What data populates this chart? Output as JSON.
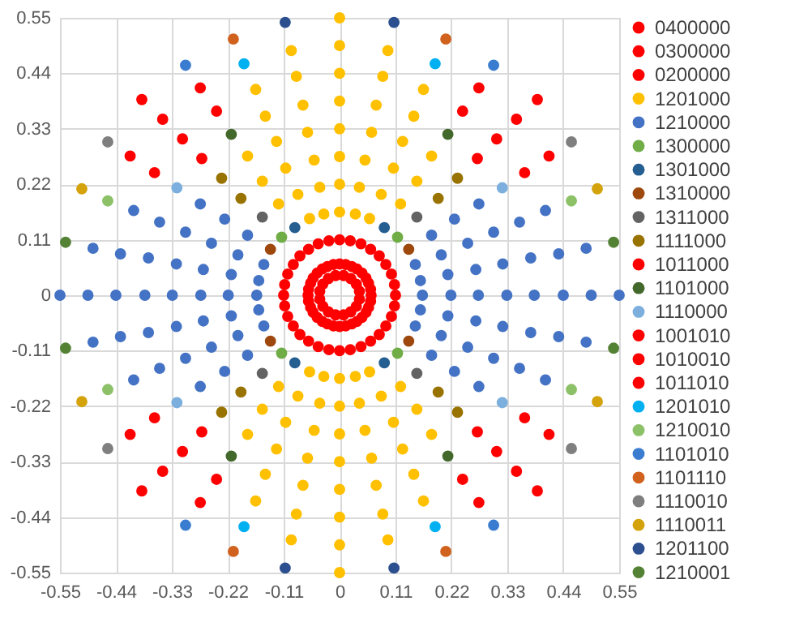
{
  "chart_data": {
    "type": "scatter",
    "xlim": [
      -0.55,
      0.55
    ],
    "ylim": [
      -0.55,
      0.55
    ],
    "xticks": [
      -0.55,
      -0.44,
      -0.33,
      -0.22,
      -0.11,
      0,
      0.11,
      0.22,
      0.33,
      0.44,
      0.55
    ],
    "yticks": [
      -0.55,
      -0.44,
      -0.33,
      -0.22,
      -0.11,
      0,
      0.11,
      0.22,
      0.33,
      0.44,
      0.55
    ],
    "grid": true,
    "legend": "right",
    "marker": "circle",
    "series": [
      {
        "name": "0400000",
        "color": "#ff0000",
        "x": [
          0.11,
          0.108,
          0.102,
          0.091,
          0.078,
          0.061,
          0.042,
          0.021,
          0,
          -0.021,
          -0.042,
          -0.061,
          -0.078,
          -0.091,
          -0.102,
          -0.108,
          -0.11,
          -0.108,
          -0.102,
          -0.091,
          -0.078,
          -0.061,
          -0.042,
          -0.021,
          0,
          0.021,
          0.042,
          0.061,
          0.078,
          0.091,
          0.102,
          0.108
        ],
        "values": [
          0,
          0.021,
          0.042,
          0.061,
          0.078,
          0.091,
          0.102,
          0.108,
          0.11,
          0.108,
          0.102,
          0.091,
          0.078,
          0.061,
          0.042,
          0.021,
          0,
          -0.021,
          -0.042,
          -0.061,
          -0.078,
          -0.091,
          -0.102,
          -0.108,
          -0.11,
          -0.108,
          -0.102,
          -0.091,
          -0.078,
          -0.061,
          -0.042,
          -0.021
        ]
      },
      {
        "name": "0300000",
        "color": "#ff0000",
        "x": [
          0.062,
          0.061,
          0.057,
          0.052,
          0.044,
          0.034,
          0.024,
          0.012,
          0,
          -0.012,
          -0.024,
          -0.034,
          -0.044,
          -0.052,
          -0.057,
          -0.061,
          -0.062,
          -0.061,
          -0.057,
          -0.052,
          -0.044,
          -0.034,
          -0.024,
          -0.012,
          0,
          0.012,
          0.024,
          0.034,
          0.044,
          0.052,
          0.057,
          0.061
        ],
        "values": [
          0,
          0.012,
          0.024,
          0.034,
          0.044,
          0.052,
          0.057,
          0.061,
          0.062,
          0.061,
          0.057,
          0.052,
          0.044,
          0.034,
          0.024,
          0.012,
          0,
          -0.012,
          -0.024,
          -0.034,
          -0.044,
          -0.052,
          -0.057,
          -0.061,
          -0.062,
          -0.061,
          -0.057,
          -0.052,
          -0.044,
          -0.034,
          -0.024,
          -0.012
        ]
      },
      {
        "name": "0200000",
        "color": "#ff0000",
        "x": [
          0.039,
          0.033,
          0.022,
          0.008,
          -0.008,
          -0.022,
          -0.033,
          -0.039,
          -0.039,
          -0.033,
          -0.022,
          -0.008,
          0.008,
          0.022,
          0.033,
          0.039
        ],
        "values": [
          0.008,
          0.022,
          0.033,
          0.039,
          0.039,
          0.033,
          0.022,
          0.008,
          -0.008,
          -0.022,
          -0.033,
          -0.039,
          -0.039,
          -0.033,
          -0.022,
          -0.008
        ]
      },
      {
        "name": "1201000",
        "color": "#ffc000",
        "x": [
          -0.095,
          -0.085,
          -0.072,
          -0.063,
          -0.05,
          -0.039,
          -0.031,
          -0.165,
          -0.146,
          -0.124,
          -0.106,
          -0.082,
          -0.059,
          -0.181,
          -0.152,
          -0.12,
          0.095,
          0.085,
          0.072,
          0.063,
          0.05,
          0.039,
          0.031,
          0.165,
          0.146,
          0.124,
          0.106,
          0.082,
          0.059,
          0.181,
          0.152,
          0.12,
          -0.095,
          -0.085,
          -0.072,
          -0.063,
          -0.05,
          -0.039,
          -0.031,
          -0.165,
          -0.146,
          -0.124,
          -0.106,
          -0.082,
          -0.059,
          -0.181,
          -0.152,
          -0.12,
          0.095,
          0.085,
          0.072,
          0.063,
          0.05,
          0.039,
          0.031,
          0.165,
          0.146,
          0.124,
          0.106,
          0.082,
          0.059,
          0.181,
          0.152,
          0.12,
          0,
          0,
          0,
          0,
          0,
          0,
          0,
          0,
          0,
          0,
          0,
          0,
          0,
          0,
          0,
          0
        ],
        "values": [
          0.485,
          0.434,
          0.377,
          0.323,
          0.268,
          0.214,
          0.161,
          0.408,
          0.355,
          0.305,
          0.252,
          0.2,
          0.152,
          0.276,
          0.226,
          0.181,
          0.485,
          0.434,
          0.377,
          0.323,
          0.268,
          0.214,
          0.161,
          0.408,
          0.355,
          0.305,
          0.252,
          0.2,
          0.152,
          0.276,
          0.226,
          0.181,
          -0.485,
          -0.434,
          -0.377,
          -0.323,
          -0.268,
          -0.214,
          -0.161,
          -0.408,
          -0.355,
          -0.305,
          -0.252,
          -0.2,
          -0.152,
          -0.276,
          -0.226,
          -0.181,
          -0.485,
          -0.434,
          -0.377,
          -0.323,
          -0.268,
          -0.214,
          -0.161,
          -0.408,
          -0.355,
          -0.305,
          -0.252,
          -0.2,
          -0.152,
          -0.276,
          -0.226,
          -0.181,
          0.55,
          0.495,
          0.44,
          0.385,
          0.33,
          0.275,
          0.22,
          0.165,
          -0.165,
          -0.22,
          -0.275,
          -0.33,
          -0.385,
          -0.44,
          -0.495,
          -0.55
        ]
      },
      {
        "name": "1210000",
        "color": "#4472c4",
        "x": [
          -0.485,
          -0.431,
          -0.376,
          -0.321,
          -0.268,
          -0.213,
          -0.159,
          -0.405,
          -0.354,
          -0.303,
          -0.252,
          -0.2,
          -0.149,
          -0.274,
          -0.226,
          -0.181,
          0.485,
          0.431,
          0.376,
          0.321,
          0.268,
          0.213,
          0.159,
          0.405,
          0.354,
          0.303,
          0.252,
          0.2,
          0.149,
          0.274,
          0.226,
          0.181,
          -0.485,
          -0.431,
          -0.376,
          -0.321,
          -0.268,
          -0.213,
          -0.159,
          -0.405,
          -0.354,
          -0.303,
          -0.252,
          -0.2,
          -0.149,
          -0.274,
          -0.226,
          -0.181,
          0.485,
          0.431,
          0.376,
          0.321,
          0.268,
          0.213,
          0.159,
          0.405,
          0.354,
          0.303,
          0.252,
          0.2,
          0.149,
          0.274,
          0.226,
          0.181,
          -0.55,
          -0.495,
          -0.44,
          -0.383,
          -0.329,
          -0.273,
          -0.219,
          -0.163,
          0.163,
          0.219,
          0.273,
          0.329,
          0.383,
          0.44,
          0.495,
          0.55
        ],
        "values": [
          0.093,
          0.082,
          0.074,
          0.062,
          0.051,
          0.041,
          0.029,
          0.168,
          0.145,
          0.125,
          0.103,
          0.08,
          0.061,
          0.181,
          0.151,
          0.119,
          0.093,
          0.082,
          0.074,
          0.062,
          0.051,
          0.041,
          0.029,
          0.168,
          0.145,
          0.125,
          0.103,
          0.08,
          0.061,
          0.181,
          0.151,
          0.119,
          -0.093,
          -0.082,
          -0.074,
          -0.062,
          -0.051,
          -0.041,
          -0.029,
          -0.168,
          -0.145,
          -0.125,
          -0.103,
          -0.08,
          -0.061,
          -0.181,
          -0.151,
          -0.119,
          -0.093,
          -0.082,
          -0.074,
          -0.062,
          -0.051,
          -0.041,
          -0.029,
          -0.168,
          -0.145,
          -0.125,
          -0.103,
          -0.08,
          -0.061,
          -0.181,
          -0.151,
          -0.119,
          0,
          0,
          0,
          0,
          0,
          0,
          0,
          0,
          0,
          0,
          0,
          0,
          0,
          0,
          0,
          0
        ]
      },
      {
        "name": "1300000",
        "color": "#70ad47",
        "x": [
          -0.114,
          0.114,
          -0.114,
          0.114
        ],
        "values": [
          0.115,
          0.115,
          -0.115,
          -0.115
        ]
      },
      {
        "name": "1301000",
        "color": "#255e91",
        "x": [
          -0.088,
          0.088,
          -0.088,
          0.088
        ],
        "values": [
          0.134,
          0.134,
          -0.134,
          -0.134
        ]
      },
      {
        "name": "1310000",
        "color": "#9e480e",
        "x": [
          -0.136,
          0.136,
          -0.136,
          0.136
        ],
        "values": [
          0.091,
          0.091,
          -0.091,
          -0.091
        ]
      },
      {
        "name": "1311000",
        "color": "#636363",
        "x": [
          -0.152,
          0.152,
          -0.152,
          0.152
        ],
        "values": [
          0.155,
          0.155,
          -0.155,
          -0.155
        ]
      },
      {
        "name": "1111000",
        "color": "#997300",
        "x": [
          -0.232,
          -0.194,
          0.232,
          0.194,
          -0.232,
          -0.194,
          0.232,
          0.194
        ],
        "values": [
          0.232,
          0.192,
          0.232,
          0.192,
          -0.232,
          -0.192,
          -0.232,
          -0.192
        ]
      },
      {
        "name": "1011000",
        "color": "#ff0000",
        "x": [
          -0.389,
          -0.348,
          0.389,
          0.348,
          -0.389,
          -0.348,
          0.389,
          0.348
        ],
        "values": [
          0.388,
          0.349,
          0.388,
          0.349,
          -0.388,
          -0.349,
          -0.388,
          -0.349
        ]
      },
      {
        "name": "1101000",
        "color": "#43682b",
        "x": [
          -0.213,
          0.213,
          -0.213,
          0.213
        ],
        "values": [
          0.319,
          0.319,
          -0.319,
          -0.319
        ]
      },
      {
        "name": "1110000",
        "color": "#7cafdd",
        "x": [
          -0.32,
          0.32,
          -0.32,
          0.32
        ],
        "values": [
          0.213,
          0.213,
          -0.213,
          -0.213
        ]
      },
      {
        "name": "1001010",
        "color": "#ff0000",
        "x": [
          -0.412,
          -0.364,
          0.412,
          0.364,
          -0.412,
          -0.364,
          0.412,
          0.364
        ],
        "values": [
          0.276,
          0.243,
          0.276,
          0.243,
          -0.276,
          -0.243,
          -0.276,
          -0.243
        ]
      },
      {
        "name": "1010010",
        "color": "#ff0000",
        "x": [
          -0.274,
          -0.242,
          0.274,
          0.242,
          -0.274,
          -0.242,
          0.274,
          0.242
        ],
        "values": [
          0.411,
          0.365,
          0.411,
          0.365,
          -0.411,
          -0.365,
          -0.411,
          -0.365
        ]
      },
      {
        "name": "1011010",
        "color": "#ff0000",
        "x": [
          -0.309,
          -0.271,
          0.309,
          0.271,
          -0.309,
          -0.271,
          0.309,
          0.271
        ],
        "values": [
          0.31,
          0.271,
          0.31,
          0.271,
          -0.31,
          -0.271,
          -0.31,
          -0.271
        ]
      },
      {
        "name": "1201010",
        "color": "#00b0f0",
        "x": [
          -0.188,
          0.188,
          -0.188,
          0.188
        ],
        "values": [
          0.459,
          0.459,
          -0.459,
          -0.459
        ]
      },
      {
        "name": "1210010",
        "color": "#8cc168",
        "x": [
          -0.456,
          0.456,
          -0.456,
          0.456
        ],
        "values": [
          0.187,
          0.187,
          -0.187,
          -0.187
        ]
      },
      {
        "name": "1101010",
        "color": "#3a7dd0",
        "x": [
          -0.303,
          0.303,
          -0.303,
          0.303
        ],
        "values": [
          0.456,
          0.456,
          -0.456,
          -0.456
        ]
      },
      {
        "name": "1101110",
        "color": "#d0621d",
        "x": [
          -0.209,
          0.209,
          -0.209,
          0.209
        ],
        "values": [
          0.508,
          0.508,
          -0.508,
          -0.508
        ]
      },
      {
        "name": "1110010",
        "color": "#7f7f7f",
        "x": [
          -0.456,
          0.456,
          -0.456,
          0.456
        ],
        "values": [
          0.304,
          0.304,
          -0.304,
          -0.304
        ]
      },
      {
        "name": "1110011",
        "color": "#d4a20b",
        "x": [
          -0.507,
          0.507,
          -0.507,
          0.507
        ],
        "values": [
          0.211,
          0.211,
          -0.211,
          -0.211
        ]
      },
      {
        "name": "1201100",
        "color": "#2c4f8f",
        "x": [
          -0.107,
          0.107,
          -0.107,
          0.107
        ],
        "values": [
          0.541,
          0.541,
          -0.541,
          -0.541
        ]
      },
      {
        "name": "1210001",
        "color": "#548235",
        "x": [
          -0.539,
          0.539,
          -0.539,
          0.539
        ],
        "values": [
          0.105,
          0.105,
          -0.105,
          -0.105
        ]
      }
    ]
  }
}
